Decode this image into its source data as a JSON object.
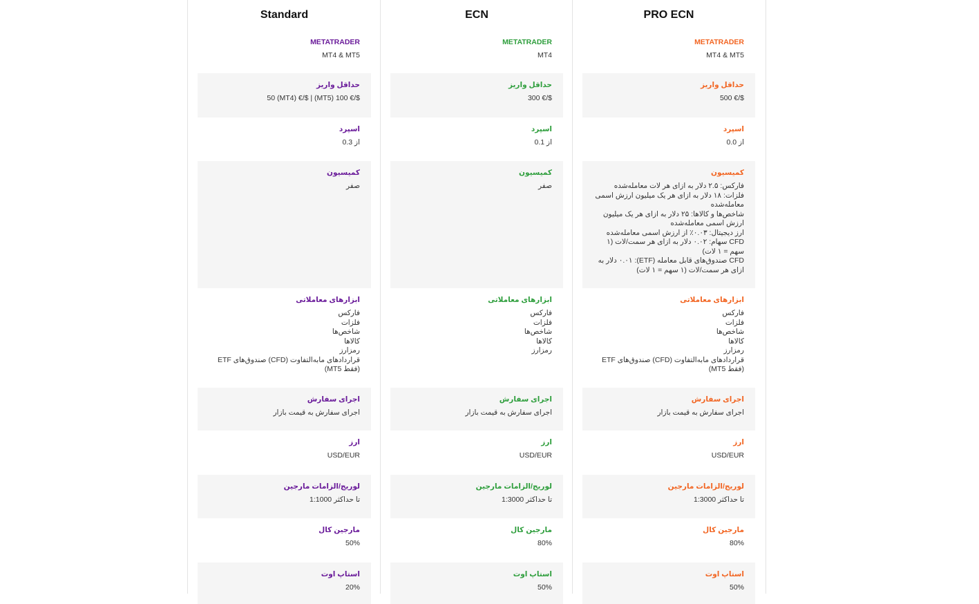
{
  "accounts": [
    {
      "title": "Standard",
      "accent": "#6a1b9a",
      "platform_label": "METATRADER",
      "platform_value": "MT4 & MT5",
      "deposit_label": "حداقل واریز",
      "deposit_value": "50 (MT4) €/$ | (MT5) 100 €/$",
      "spread_label": "اسپرد",
      "spread_value": "از 0.3",
      "commission_label": "کمیسیون",
      "commission_lines": [
        "صفر"
      ],
      "instruments_label": "ابزارهای معاملاتی",
      "instruments_lines": [
        "فارکس",
        "فلزات",
        "شاخص‌ها",
        "کالاها",
        "رمزارز",
        "قراردادهای مابه‌التفاوت (CFD) صندوق‌های ETF (فقط MT5)"
      ],
      "execution_label": "اجرای سفارش",
      "execution_value": "اجرای سفارش به قیمت بازار",
      "currency_label": "ارز",
      "currency_value": "USD/EUR",
      "leverage_label": "لوریج/الزامات مارجین",
      "leverage_value": "تا حداکثر 1:1000",
      "margin_call_label": "مارجین کال",
      "margin_call_value": "50%",
      "stop_out_label": "استاپ اوت",
      "stop_out_value": "20%"
    },
    {
      "title": "ECN",
      "accent": "#2e9e3c",
      "platform_label": "METATRADER",
      "platform_value": "MT4",
      "deposit_label": "حداقل واریز",
      "deposit_value": "300 €/$",
      "spread_label": "اسپرد",
      "spread_value": "از 0.1",
      "commission_label": "کمیسیون",
      "commission_lines": [
        "صفر"
      ],
      "instruments_label": "ابزارهای معاملاتی",
      "instruments_lines": [
        "فارکس",
        "فلزات",
        "شاخص‌ها",
        "کالاها",
        "رمزارز"
      ],
      "execution_label": "اجرای سفارش",
      "execution_value": "اجرای سفارش به قیمت بازار",
      "currency_label": "ارز",
      "currency_value": "USD/EUR",
      "leverage_label": "لوریج/الزامات مارجین",
      "leverage_value": "تا حداکثر 1:3000",
      "margin_call_label": "مارجین کال",
      "margin_call_value": "80%",
      "stop_out_label": "استاپ اوت",
      "stop_out_value": "50%"
    },
    {
      "title": "PRO ECN",
      "accent": "#f26522",
      "platform_label": "METATRADER",
      "platform_value": "MT4 & MT5",
      "deposit_label": "حداقل واریز",
      "deposit_value": "500 €/$",
      "spread_label": "اسپرد",
      "spread_value": "از 0.0",
      "commission_label": "کمیسیون",
      "commission_lines": [
        "فارکس: ۲.۵ دلار به ازای هر لات معامله‌شده",
        "فلزات: ۱۸ دلار به ازای هر یک میلیون ارزش اسمی معامله‌شده",
        "شاخص‌ها و کالاها: ۲۵ دلار به ازای هر یک میلیون ارزش اسمی معامله‌شده",
        "ارز دیجیتال: ۰.۰۳٪ از ارزش اسمی معامله‌شده",
        "CFD سهام: ۰.۰۲ دلار به ازای هر سمت/لات (۱ سهم = ۱ لات)",
        "CFD صندوق‌های قابل معامله (ETF): ۰.۰۱ دلار به ازای هر سمت/لات (۱ سهم = ۱ لات)"
      ],
      "instruments_label": "ابزارهای معاملاتی",
      "instruments_lines": [
        "فارکس",
        "فلزات",
        "شاخص‌ها",
        "کالاها",
        "رمزارز",
        "قراردادهای مابه‌التفاوت (CFD) صندوق‌های ETF (فقط MT5)"
      ],
      "execution_label": "اجرای سفارش",
      "execution_value": "اجرای سفارش به قیمت بازار",
      "currency_label": "ارز",
      "currency_value": "USD/EUR",
      "leverage_label": "لوریج/الزامات مارجین",
      "leverage_value": "تا حداکثر 1:3000",
      "margin_call_label": "مارجین کال",
      "margin_call_value": "80%",
      "stop_out_label": "استاپ اوت",
      "stop_out_value": "50%"
    }
  ]
}
